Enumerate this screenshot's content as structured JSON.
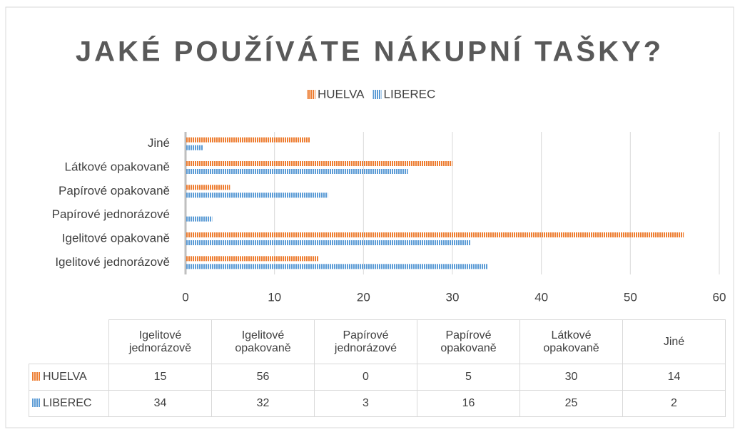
{
  "chart_data": {
    "type": "bar",
    "orientation": "horizontal",
    "title": "JAKÉ POUŽÍVÁTE NÁKUPNÍ TAŠKY?",
    "categories": [
      "Igelitové jednorázově",
      "Igelitové opakovaně",
      "Papírové jednorázové",
      "Papírové opakovaně",
      "Látkové opakovaně",
      "Jiné"
    ],
    "series": [
      {
        "name": "HUELVA",
        "color": "#ed7d31",
        "values": [
          15,
          56,
          0,
          5,
          30,
          14
        ]
      },
      {
        "name": "LIBEREC",
        "color": "#5b9bd5",
        "values": [
          34,
          32,
          3,
          16,
          25,
          2
        ]
      }
    ],
    "xlim": [
      0,
      60
    ],
    "xticks": [
      0,
      10,
      20,
      30,
      40,
      50,
      60
    ],
    "grid": true,
    "legend": "top",
    "data_table": true
  }
}
